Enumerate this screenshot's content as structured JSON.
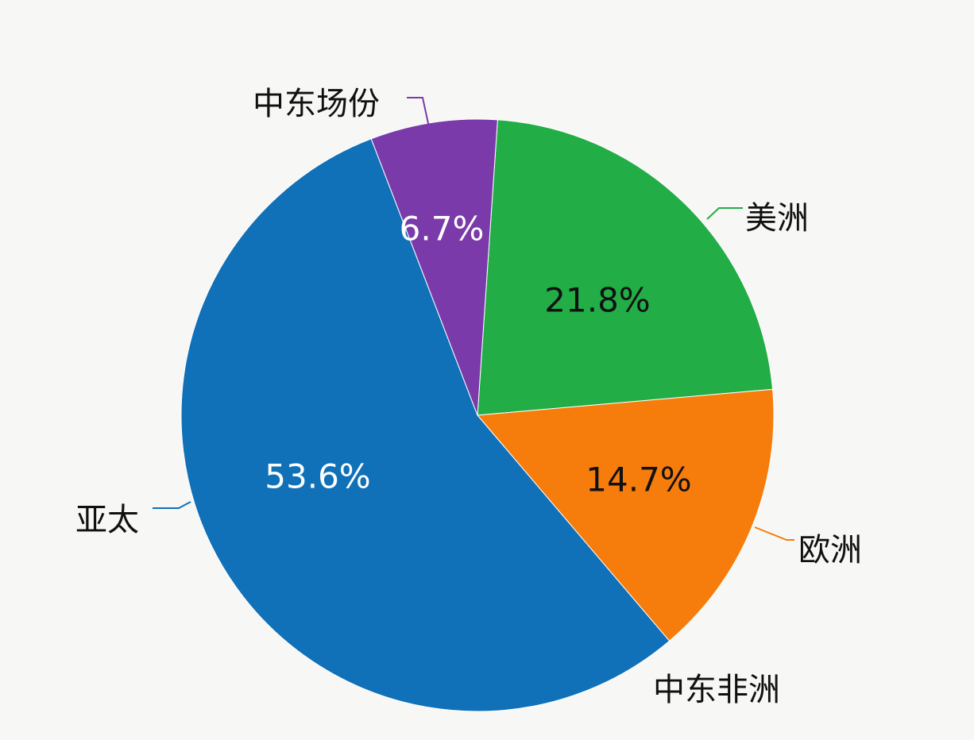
{
  "chart_data": {
    "type": "pie",
    "title": "",
    "slices": [
      {
        "label": "美洲",
        "value": 21.8,
        "display": "21.8%",
        "color": "#22ad47",
        "text_color": "#111111"
      },
      {
        "label": "欧洲",
        "value": 14.7,
        "display": "14.7%",
        "color": "#f67c0b",
        "text_color": "#111111"
      },
      {
        "label": "亚太",
        "value": 53.6,
        "display": "53.6%",
        "color": "#1070b8",
        "text_color": "#ffffff"
      },
      {
        "label": "中东场份",
        "value": 6.7,
        "display": "6.7%",
        "color": "#7b3aa9",
        "text_color": "#ffffff"
      }
    ],
    "extra_labels": [
      "中东非洲"
    ],
    "legend": "none (leader-line labels)"
  }
}
